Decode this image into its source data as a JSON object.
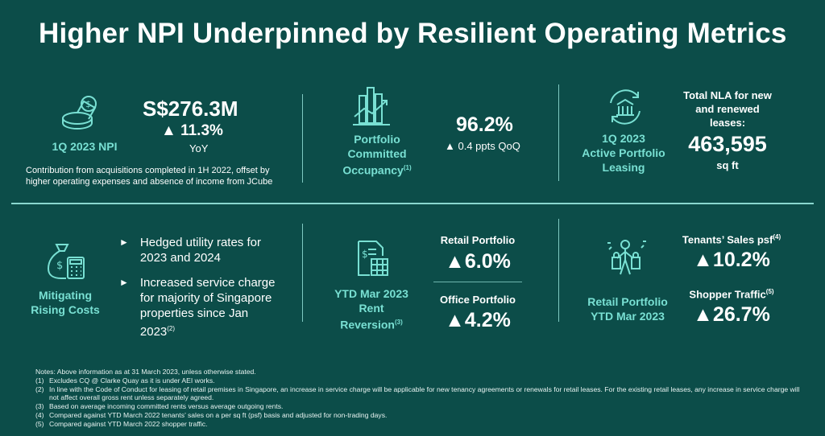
{
  "title": "Higher NPI Underpinned by Resilient Operating Metrics",
  "npi": {
    "label": "1Q 2023 NPI",
    "value": "S$276.3M",
    "change": "▲ 11.3%",
    "change_period": "YoY",
    "note_line1": "Contribution from acquisitions completed in 1H 2022, offset by",
    "note_line2": "higher operating expenses and absence of income from JCube"
  },
  "occupancy": {
    "label_line1": "Portfolio",
    "label_line2": "Committed",
    "label_line3": "Occupancy",
    "label_sup": "(1)",
    "value": "96.2%",
    "change": "▲ 0.4 ppts QoQ"
  },
  "leasing": {
    "label_line1": "1Q 2023",
    "label_line2": "Active Portfolio",
    "label_line3": "Leasing",
    "nla_line1": "Total NLA for new",
    "nla_line2": "and renewed",
    "nla_line3": "leases:",
    "nla_value": "463,595",
    "nla_unit": "sq ft"
  },
  "costs": {
    "label_line1": "Mitigating",
    "label_line2": "Rising Costs",
    "bullet_marker": "►",
    "bullet1_line1": "Hedged utility rates for",
    "bullet1_line2": "2023 and 2024",
    "bullet2_line1": "Increased service charge",
    "bullet2_line2": "for majority of Singapore",
    "bullet2_line3": "properties since Jan",
    "bullet2_line4": "2023",
    "bullet2_sup": "(2)"
  },
  "reversion": {
    "label_line1": "YTD Mar 2023",
    "label_line2": "Rent",
    "label_line3": "Reversion",
    "label_sup": "(3)",
    "retail_label": "Retail Portfolio",
    "retail_value": "▲6.0%",
    "office_label": "Office Portfolio",
    "office_value": "▲4.2%"
  },
  "retail": {
    "label_line1": "Retail Portfolio",
    "label_line2": "YTD Mar 2023",
    "sales_label": "Tenants’ Sales psf",
    "sales_sup": "(4)",
    "sales_value": "▲10.2%",
    "traffic_label": "Shopper Traffic",
    "traffic_sup": "(5)",
    "traffic_value": "▲26.7%"
  },
  "notes": {
    "header": "Notes: Above information as at 31 March 2023, unless otherwise stated.",
    "items": [
      {
        "num": "(1)",
        "text": "Excludes CQ @ Clarke Quay as it is under AEI works."
      },
      {
        "num": "(2)",
        "text": "In line with the Code of Conduct for leasing of retail premises in Singapore, an increase in service charge will be applicable for new tenancy agreements or renewals for retail leases. For the existing retail leases, any increase in service charge will not affect overall gross rent unless separately agreed."
      },
      {
        "num": "(3)",
        "text": "Based on average incoming committed rents versus average outgoing rents."
      },
      {
        "num": "(4)",
        "text": "Compared against YTD March 2022 tenants’ sales on a per sq ft (psf) basis and adjusted for non-trading days."
      },
      {
        "num": "(5)",
        "text": "Compared against YTD March 2022 shopper traffic."
      }
    ]
  },
  "colors": {
    "background": "#0c4d49",
    "accent": "#79e0d3",
    "text": "#ffffff"
  },
  "icons": [
    "money-stack-icon",
    "building-chart-icon",
    "building-cycle-icon",
    "moneybag-calculator-icon",
    "invoice-spreadsheet-icon",
    "shopper-bags-icon"
  ]
}
